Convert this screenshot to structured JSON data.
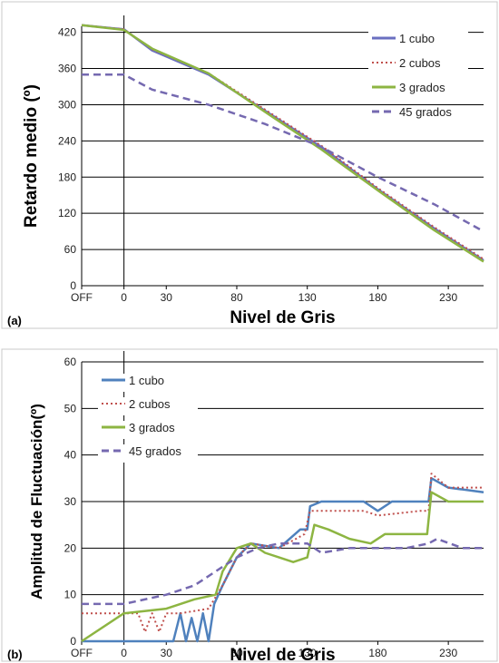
{
  "chart_data": [
    {
      "type": "line",
      "panel_label": "(a)",
      "xlabel": "Nivel de Gris",
      "ylabel": "Retardo medio (º)",
      "x_ticks": [
        {
          "label": "OFF",
          "value": -30
        },
        {
          "label": "0",
          "value": 0
        },
        {
          "label": "30",
          "value": 30
        },
        {
          "label": "80",
          "value": 80
        },
        {
          "label": "130",
          "value": 130
        },
        {
          "label": "180",
          "value": 180
        },
        {
          "label": "230",
          "value": 230
        }
      ],
      "xlim": [
        -30,
        255
      ],
      "ylim": [
        0,
        430
      ],
      "y_ticks": [
        0,
        60,
        120,
        180,
        240,
        300,
        360,
        420
      ],
      "grid": "horizontal",
      "legend_position": "top-right",
      "series": [
        {
          "name": "1 cubo",
          "color": "#6a6fc0",
          "dash": "solid",
          "points": [
            [
              -30,
              432
            ],
            [
              0,
              425
            ],
            [
              20,
              390
            ],
            [
              60,
              350
            ],
            [
              100,
              290
            ],
            [
              140,
              230
            ],
            [
              180,
              160
            ],
            [
              220,
              95
            ],
            [
              255,
              42
            ]
          ]
        },
        {
          "name": "2 cubos",
          "color": "#c0504d",
          "dash": "dotted",
          "points": [
            [
              -30,
              432
            ],
            [
              0,
              425
            ],
            [
              20,
              392
            ],
            [
              60,
              352
            ],
            [
              100,
              292
            ],
            [
              140,
              232
            ],
            [
              180,
              162
            ],
            [
              220,
              97
            ],
            [
              255,
              44
            ]
          ]
        },
        {
          "name": "3 grados",
          "color": "#8db542",
          "dash": "solid",
          "points": [
            [
              -30,
              432
            ],
            [
              0,
              424
            ],
            [
              20,
              393
            ],
            [
              60,
              352
            ],
            [
              100,
              288
            ],
            [
              140,
              226
            ],
            [
              180,
              158
            ],
            [
              220,
              92
            ],
            [
              255,
              40
            ]
          ]
        },
        {
          "name": "45 grados",
          "color": "#7569b0",
          "dash": "dashed",
          "points": [
            [
              -30,
              350
            ],
            [
              0,
              350
            ],
            [
              20,
              325
            ],
            [
              60,
              300
            ],
            [
              100,
              268
            ],
            [
              140,
              230
            ],
            [
              180,
              180
            ],
            [
              220,
              135
            ],
            [
              255,
              90
            ]
          ]
        }
      ]
    },
    {
      "type": "line",
      "panel_label": "(b)",
      "xlabel": "Nivel de Gris",
      "ylabel": "Amplitud de Fluctuación(º)",
      "x_ticks": [
        {
          "label": "OFF",
          "value": -30
        },
        {
          "label": "0",
          "value": 0
        },
        {
          "label": "30",
          "value": 30
        },
        {
          "label": "80",
          "value": 80
        },
        {
          "label": "130",
          "value": 130
        },
        {
          "label": "180",
          "value": 180
        },
        {
          "label": "230",
          "value": 230
        }
      ],
      "xlim": [
        -30,
        255
      ],
      "ylim": [
        0,
        60
      ],
      "y_ticks": [
        0,
        10,
        20,
        30,
        40,
        50,
        60
      ],
      "grid": "horizontal",
      "legend_position": "top-left",
      "series": [
        {
          "name": "1 cubo",
          "color": "#4f81bd",
          "dash": "solid",
          "points": [
            [
              -30,
              0
            ],
            [
              35,
              0
            ],
            [
              40,
              6
            ],
            [
              44,
              0
            ],
            [
              48,
              5
            ],
            [
              52,
              0
            ],
            [
              56,
              6
            ],
            [
              60,
              0
            ],
            [
              64,
              8
            ],
            [
              70,
              12
            ],
            [
              80,
              18
            ],
            [
              90,
              21
            ],
            [
              110,
              20
            ],
            [
              125,
              24
            ],
            [
              130,
              24
            ],
            [
              132,
              29
            ],
            [
              140,
              30
            ],
            [
              170,
              30
            ],
            [
              180,
              28
            ],
            [
              190,
              30
            ],
            [
              210,
              30
            ],
            [
              216,
              30
            ],
            [
              218,
              35
            ],
            [
              230,
              33
            ],
            [
              255,
              32
            ]
          ]
        },
        {
          "name": "2 cubos",
          "color": "#c0504d",
          "dash": "dotted",
          "points": [
            [
              -30,
              6
            ],
            [
              0,
              6
            ],
            [
              10,
              6
            ],
            [
              15,
              2
            ],
            [
              20,
              6
            ],
            [
              25,
              2
            ],
            [
              30,
              6
            ],
            [
              40,
              6
            ],
            [
              60,
              7
            ],
            [
              70,
              12
            ],
            [
              80,
              18
            ],
            [
              90,
              21
            ],
            [
              110,
              20
            ],
            [
              128,
              23
            ],
            [
              132,
              28
            ],
            [
              170,
              28
            ],
            [
              180,
              27
            ],
            [
              210,
              28
            ],
            [
              216,
              28
            ],
            [
              218,
              36
            ],
            [
              230,
              33
            ],
            [
              255,
              33
            ]
          ]
        },
        {
          "name": "3 grados",
          "color": "#8db542",
          "dash": "solid",
          "points": [
            [
              -30,
              0
            ],
            [
              0,
              6
            ],
            [
              30,
              7
            ],
            [
              50,
              9
            ],
            [
              65,
              10
            ],
            [
              70,
              15
            ],
            [
              80,
              20
            ],
            [
              90,
              21
            ],
            [
              100,
              19
            ],
            [
              110,
              18
            ],
            [
              120,
              17
            ],
            [
              130,
              18
            ],
            [
              135,
              25
            ],
            [
              145,
              24
            ],
            [
              160,
              22
            ],
            [
              175,
              21
            ],
            [
              185,
              23
            ],
            [
              205,
              23
            ],
            [
              215,
              23
            ],
            [
              218,
              32
            ],
            [
              230,
              30
            ],
            [
              255,
              30
            ]
          ]
        },
        {
          "name": "45 grados",
          "color": "#7569b0",
          "dash": "dashed",
          "points": [
            [
              -30,
              8
            ],
            [
              0,
              8
            ],
            [
              30,
              10
            ],
            [
              50,
              12
            ],
            [
              65,
              15
            ],
            [
              80,
              18
            ],
            [
              95,
              20
            ],
            [
              110,
              21
            ],
            [
              130,
              21
            ],
            [
              140,
              19
            ],
            [
              160,
              20
            ],
            [
              180,
              20
            ],
            [
              200,
              20
            ],
            [
              216,
              21
            ],
            [
              222,
              22
            ],
            [
              240,
              20
            ],
            [
              255,
              20
            ]
          ]
        }
      ]
    }
  ]
}
